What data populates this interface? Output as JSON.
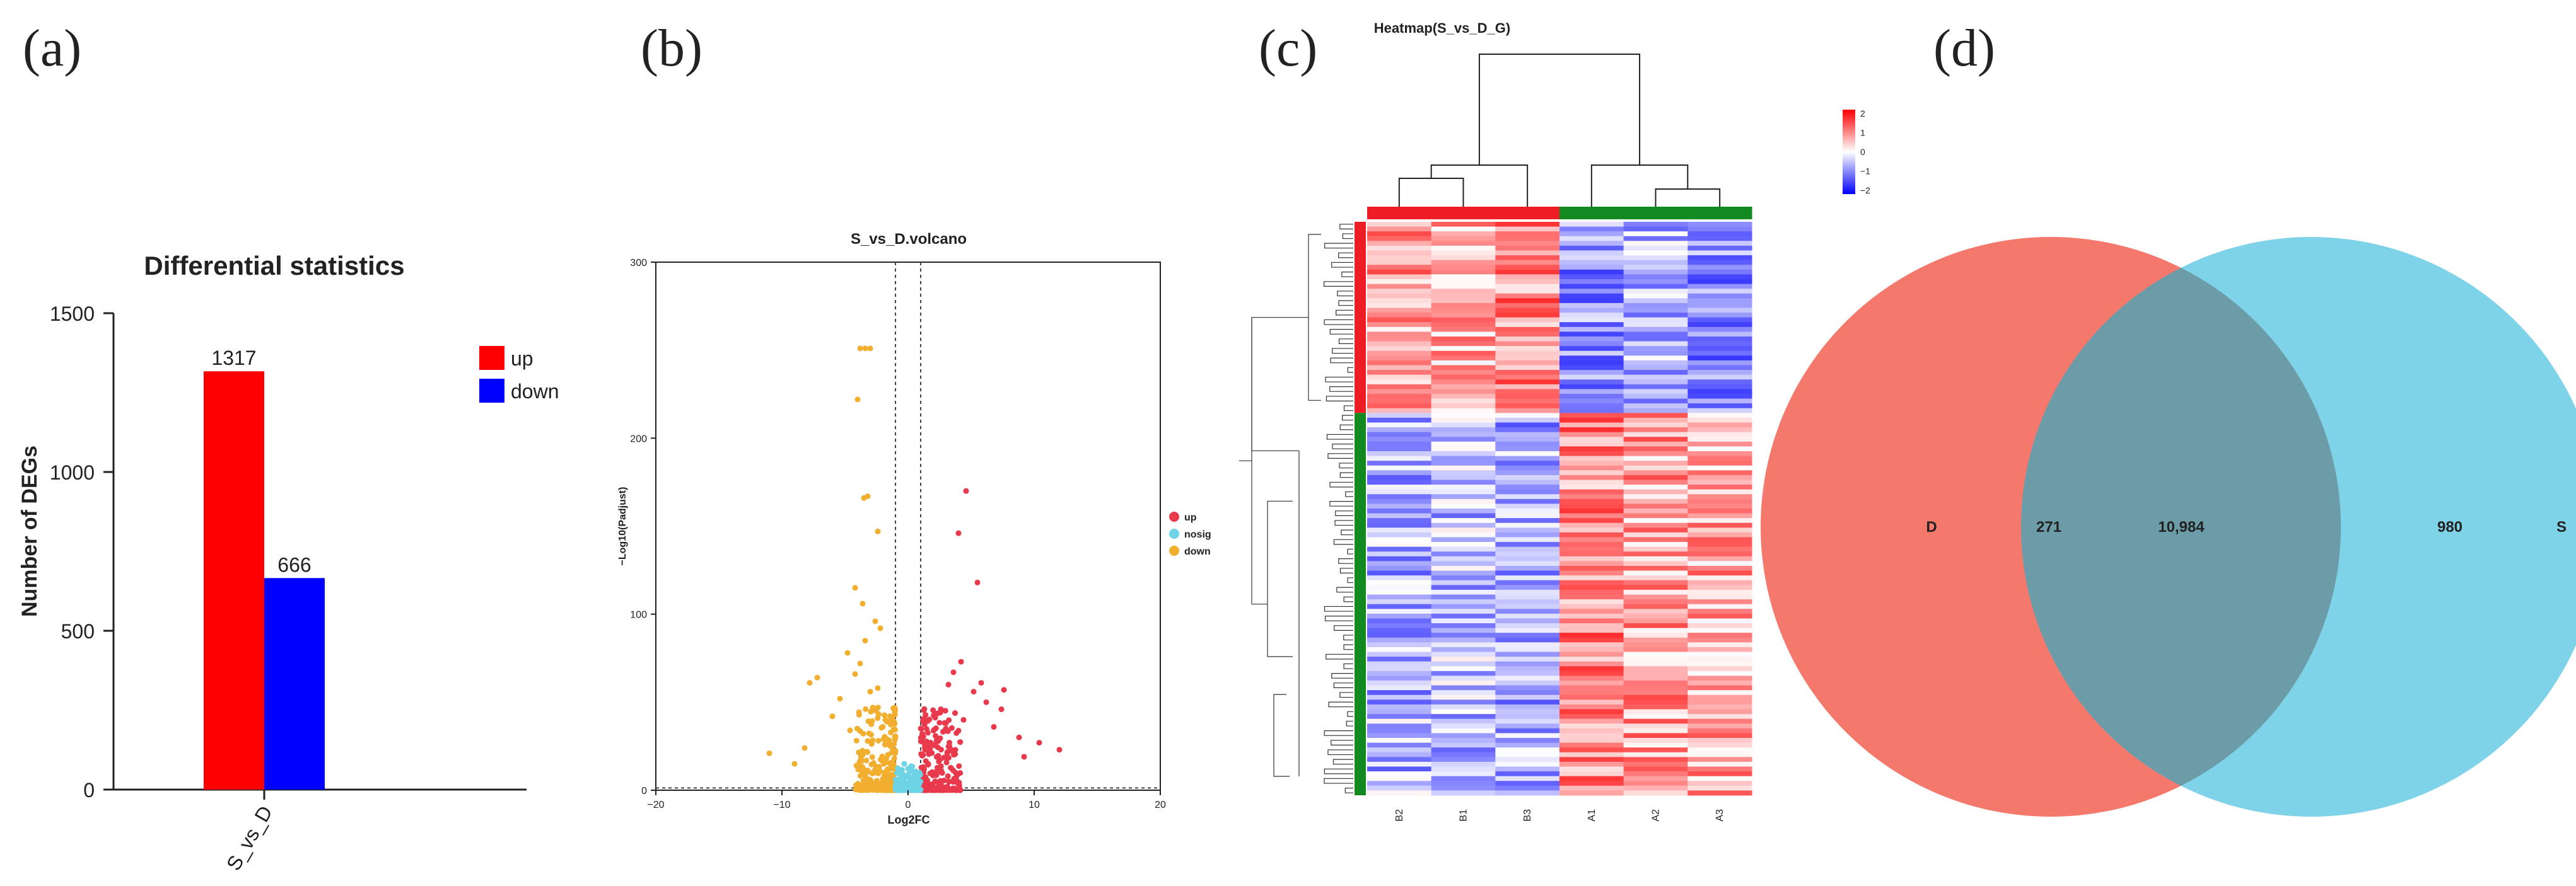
{
  "panels": {
    "a": "(a)",
    "b": "(b)",
    "c": "(c)",
    "d": "(d)"
  },
  "chart_data": [
    {
      "type": "bar",
      "title": "Differential statistics",
      "ylabel": "Number of DEGs",
      "xlabel": "",
      "categories": [
        "S_vs_D"
      ],
      "series": [
        {
          "name": "up",
          "values": [
            1317
          ],
          "color": "#ff0000"
        },
        {
          "name": "down",
          "values": [
            666
          ],
          "color": "#0000ff"
        }
      ],
      "data_labels": [
        "1317",
        "666"
      ],
      "ylim": [
        0,
        1500
      ],
      "yticks": [
        "0",
        "500",
        "1000",
        "1500"
      ],
      "legend": "right",
      "grid": false
    },
    {
      "type": "scatter",
      "title": "S_vs_D.volcano",
      "xlabel": "Log2FC",
      "ylabel": "−Log10(Padjust)",
      "xlim": [
        -20,
        20
      ],
      "ylim": [
        0,
        300
      ],
      "xticks": [
        "−20",
        "−10",
        "0",
        "10",
        "20"
      ],
      "yticks": [
        "0",
        "100",
        "200",
        "300"
      ],
      "thresholds": {
        "log2fc": [
          -1,
          1
        ],
        "padjust_line": 1.3
      },
      "legend": "right",
      "series": [
        {
          "name": "up",
          "color": "#e8394d",
          "points": [
            [
              4.6,
              170
            ],
            [
              4.0,
              146
            ],
            [
              5.5,
              118
            ],
            [
              4.2,
              73
            ],
            [
              3.6,
              67
            ],
            [
              5.8,
              61
            ],
            [
              7.6,
              57
            ],
            [
              5.2,
              56
            ],
            [
              6.2,
              50
            ],
            [
              7.4,
              46
            ],
            [
              8.8,
              30
            ],
            [
              10.4,
              27
            ],
            [
              12.0,
              23
            ],
            [
              9.2,
              19
            ],
            [
              6.8,
              36
            ],
            [
              3.2,
              60
            ],
            [
              2.6,
              46
            ],
            [
              3.0,
              35
            ],
            [
              2.4,
              28
            ],
            [
              4.4,
              40
            ]
          ]
        },
        {
          "name": "nosig",
          "color": "#6fd3e6",
          "points": [
            [
              -0.6,
              8
            ],
            [
              0.0,
              4
            ],
            [
              0.5,
              9
            ],
            [
              -0.9,
              3
            ],
            [
              0.8,
              2
            ],
            [
              0.2,
              12
            ],
            [
              -0.3,
              15
            ],
            [
              0.4,
              6
            ]
          ]
        },
        {
          "name": "down",
          "color": "#f2ae2e",
          "points": [
            [
              -3.8,
              251
            ],
            [
              -3.4,
              251
            ],
            [
              -3.0,
              251
            ],
            [
              -4.0,
              222
            ],
            [
              -3.5,
              166
            ],
            [
              -3.2,
              167
            ],
            [
              -2.4,
              147
            ],
            [
              -4.2,
              115
            ],
            [
              -3.6,
              106
            ],
            [
              -2.6,
              96
            ],
            [
              -2.2,
              92
            ],
            [
              -3.4,
              85
            ],
            [
              -4.8,
              78
            ],
            [
              -3.8,
              72
            ],
            [
              -4.2,
              66
            ],
            [
              -7.2,
              64
            ],
            [
              -7.8,
              61
            ],
            [
              -3.0,
              56
            ],
            [
              -5.4,
              52
            ],
            [
              -2.8,
              47
            ],
            [
              -6.0,
              42
            ],
            [
              -4.6,
              34
            ],
            [
              -8.2,
              24
            ],
            [
              -11.0,
              21
            ],
            [
              -9.0,
              15
            ],
            [
              -2.4,
              58
            ],
            [
              -1.8,
              40
            ],
            [
              -3.2,
              28
            ]
          ]
        }
      ]
    },
    {
      "type": "heatmap",
      "title": "Heatmap(S_vs_D_G)",
      "columns": [
        "B2",
        "B1",
        "B3",
        "A1",
        "A2",
        "A3"
      ],
      "column_groups": [
        "red",
        "red",
        "red",
        "green",
        "green",
        "green"
      ],
      "row_groups": [
        {
          "color": "red",
          "fraction": 0.33
        },
        {
          "color": "green",
          "fraction": 0.67
        }
      ],
      "color_scale": {
        "min": -2,
        "max": 2,
        "ticks": [
          "2",
          "1",
          "0",
          "−1",
          "−2"
        ],
        "colors": [
          "#0000ff",
          "#ffffff",
          "#ff0000"
        ]
      },
      "pattern": {
        "upper_block": [
          0.8,
          0.7,
          1.0,
          -1.0,
          -0.6,
          -1.0
        ],
        "lower_block": [
          -0.7,
          -0.6,
          -0.8,
          1.0,
          0.8,
          0.7
        ]
      }
    },
    {
      "type": "venn",
      "sets": [
        {
          "name": "D",
          "color": "#f4786b"
        },
        {
          "name": "S",
          "color": "#74cfe6"
        }
      ],
      "values": {
        "only_D": "271",
        "intersection": "10,984",
        "only_S": "980"
      }
    }
  ]
}
